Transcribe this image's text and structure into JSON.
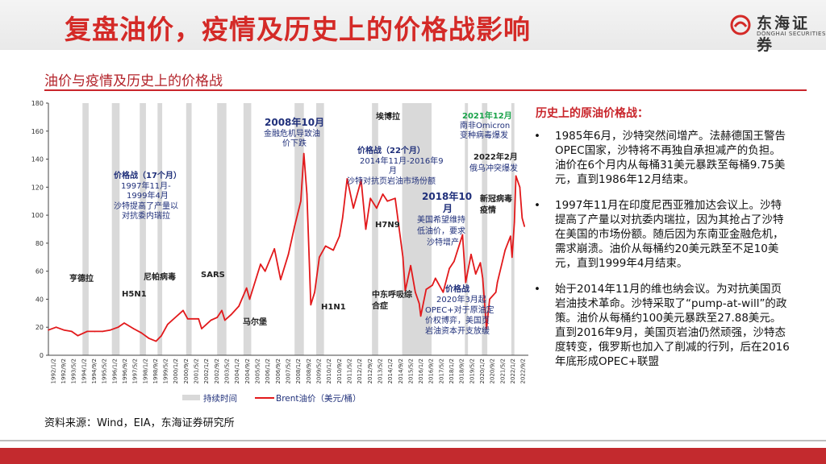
{
  "header": {
    "title": "复盘油价，疫情及历史上的价格战影响",
    "logo_cn": "东海证券",
    "logo_en": "DONGHAI SECURITIES",
    "accent": "#d42a27"
  },
  "subtitle": "油价与疫情及历史上的价格战",
  "chart_data": {
    "type": "line",
    "ylim": [
      0,
      180
    ],
    "yticks": [
      0,
      20,
      40,
      60,
      80,
      100,
      120,
      140,
      160,
      180
    ],
    "xticks": [
      "1992/1/2",
      "1992/9/2",
      "1993/5/2",
      "1994/1/2",
      "1994/9/2",
      "1995/5/2",
      "1996/1/2",
      "1996/9/2",
      "1997/5/2",
      "1998/1/2",
      "1998/9/2",
      "1999/5/2",
      "2000/1/2",
      "2000/9/2",
      "2001/5/2",
      "2002/1/2",
      "2002/9/2",
      "2003/5/2",
      "2004/1/2",
      "2004/9/2",
      "2005/5/2",
      "2006/1/2",
      "2006/9/2",
      "2007/5/2",
      "2008/1/2",
      "2008/9/2",
      "2009/5/2",
      "2010/1/2",
      "2010/9/2",
      "2011/5/2",
      "2012/1/2",
      "2012/9/2",
      "2013/5/2",
      "2014/1/2",
      "2014/9/2",
      "2015/5/2",
      "2016/1/2",
      "2016/9/2",
      "2017/5/2",
      "2018/1/2",
      "2018/9/2",
      "2019/5/2",
      "2020/1/2",
      "2020/9/2",
      "2021/5/2",
      "2022/1/2",
      "2022/9/2"
    ],
    "xlim": [
      1992.0,
      2023.0
    ],
    "series": [
      {
        "name": "Brent油价（美元/桶）",
        "color": "#e2191b",
        "points": [
          [
            1992.0,
            18
          ],
          [
            1992.5,
            20
          ],
          [
            1993.0,
            18
          ],
          [
            1993.5,
            17
          ],
          [
            1993.9,
            14
          ],
          [
            1994.5,
            17
          ],
          [
            1995.0,
            17
          ],
          [
            1995.5,
            17
          ],
          [
            1996.0,
            18
          ],
          [
            1996.5,
            20
          ],
          [
            1996.9,
            23
          ],
          [
            1997.5,
            19
          ],
          [
            1998.0,
            16
          ],
          [
            1998.5,
            12
          ],
          [
            1998.95,
            10
          ],
          [
            1999.3,
            14
          ],
          [
            1999.7,
            22
          ],
          [
            2000.0,
            25
          ],
          [
            2000.7,
            32
          ],
          [
            2001.0,
            26
          ],
          [
            2001.7,
            26
          ],
          [
            2001.9,
            19
          ],
          [
            2002.5,
            25
          ],
          [
            2002.9,
            27
          ],
          [
            2003.2,
            32
          ],
          [
            2003.4,
            25
          ],
          [
            2003.8,
            29
          ],
          [
            2004.3,
            35
          ],
          [
            2004.8,
            48
          ],
          [
            2005.0,
            40
          ],
          [
            2005.7,
            65
          ],
          [
            2006.0,
            60
          ],
          [
            2006.6,
            76
          ],
          [
            2007.0,
            54
          ],
          [
            2007.5,
            72
          ],
          [
            2007.9,
            92
          ],
          [
            2008.3,
            110
          ],
          [
            2008.5,
            144
          ],
          [
            2008.7,
            115
          ],
          [
            2008.95,
            36
          ],
          [
            2009.2,
            45
          ],
          [
            2009.5,
            70
          ],
          [
            2009.9,
            78
          ],
          [
            2010.4,
            75
          ],
          [
            2010.8,
            85
          ],
          [
            2011.0,
            98
          ],
          [
            2011.3,
            126
          ],
          [
            2011.7,
            105
          ],
          [
            2012.2,
            125
          ],
          [
            2012.5,
            90
          ],
          [
            2012.8,
            112
          ],
          [
            2013.2,
            105
          ],
          [
            2013.6,
            115
          ],
          [
            2013.9,
            110
          ],
          [
            2014.4,
            112
          ],
          [
            2014.9,
            70
          ],
          [
            2015.05,
            46
          ],
          [
            2015.4,
            64
          ],
          [
            2015.7,
            45
          ],
          [
            2015.95,
            37
          ],
          [
            2016.05,
            28
          ],
          [
            2016.4,
            47
          ],
          [
            2016.8,
            50
          ],
          [
            2017.0,
            55
          ],
          [
            2017.5,
            45
          ],
          [
            2017.9,
            62
          ],
          [
            2018.2,
            67
          ],
          [
            2018.75,
            86
          ],
          [
            2018.95,
            52
          ],
          [
            2019.3,
            72
          ],
          [
            2019.6,
            58
          ],
          [
            2019.9,
            66
          ],
          [
            2020.05,
            55
          ],
          [
            2020.3,
            19
          ],
          [
            2020.5,
            40
          ],
          [
            2020.9,
            45
          ],
          [
            2021.0,
            52
          ],
          [
            2021.5,
            75
          ],
          [
            2021.85,
            85
          ],
          [
            2021.95,
            70
          ],
          [
            2022.1,
            95
          ],
          [
            2022.2,
            128
          ],
          [
            2022.45,
            120
          ],
          [
            2022.6,
            98
          ],
          [
            2022.75,
            92
          ]
        ]
      }
    ],
    "shading": {
      "name": "持续时间",
      "color": "#d9d9d9",
      "periods": [
        [
          1994.2,
          1994.6
        ],
        [
          1996.1,
          1996.6
        ],
        [
          1997.9,
          1998.3
        ],
        [
          1999.05,
          1999.35
        ],
        [
          2000.9,
          2001.25
        ],
        [
          2002.9,
          2003.5
        ],
        [
          2004.6,
          2005.1
        ],
        [
          2007.9,
          2008.5
        ],
        [
          2009.3,
          2009.8
        ],
        [
          2012.9,
          2013.3
        ],
        [
          2014.85,
          2016.75
        ],
        [
          2018.9,
          2019.1
        ],
        [
          2020.0,
          2020.35
        ],
        [
          2021.9,
          2022.1
        ]
      ]
    },
    "legend": [
      "持续时间",
      "Brent油价（美元/桶）"
    ],
    "legend_position": "bottom",
    "grid": false,
    "annotations": {
      "a2008_title": "2008年10月",
      "a2008_body_1": "金融危机导致油",
      "a2008_body_2": "价下跌",
      "a2021_title": "2021年12月",
      "a2021_body_1": "南非Omicron",
      "a2021_body_2": "变种病毒爆发",
      "ebola": "埃博拉",
      "war14_title": "价格战（22个月）",
      "war14_body_1": "2014年11月-2016年9",
      "war14_body_2": "月",
      "war14_body_3": "沙特对抗页岩油市场份额",
      "war97_title": "价格战（17个月）",
      "war97_body_1": "1997年11月-",
      "war97_body_2": "1999年4月",
      "war97_body_3": "沙特提高了产量以",
      "war97_body_4": "对抗委内瑞拉",
      "a2022_title": "2022年2月",
      "a2022_body": "俄乌冲突爆发",
      "a2018_title_1": "2018年10",
      "a2018_title_2": "月",
      "a2018_body_1": "美国希望维持",
      "a2018_body_2": "低油价，要求",
      "a2018_body_3": "沙特增产",
      "covid_1": "新冠病毒",
      "covid_2": "疫情",
      "h7n9": "H7N9",
      "dengue": "亨德拉",
      "h5n1": "H5N1",
      "nipah": "尼帕病毒",
      "sars": "SARS",
      "marburg": "马尔堡",
      "h1n1": "H1N1",
      "mers_1": "中东呼吸综",
      "mers_2": "合症",
      "war20_title": "价格战",
      "war20_body_1": "2020年3月起",
      "war20_body_2": "OPEC+对于原油定",
      "war20_body_3": "价权博弈，美国页",
      "war20_body_4": "岩油资本开支放缓"
    }
  },
  "right_panel": {
    "title": "历史上的原油价格战：",
    "bullet": "•",
    "items": [
      "1985年6月，沙特突然间增产。法赫德国王警告OPEC国家，沙特将不再独自承担减产的负担。油价在6个月内从每桶31美元暴跌至每桶9.75美元，直到1986年12月结束。",
      "1997年11月在印度尼西亚雅加达会议上。沙特提高了产量以对抗委内瑞拉，因为其抢占了沙特在美国的市场份额。随后因为东南亚金融危机，需求崩溃。油价从每桶约20美元跌至不足10美元，直到1999年4月结束。",
      "始于2014年11月的维也纳会议。为对抗美国页岩油技术革命。沙特采取了“pump-at-will”的政策。油价从每桶约100美元暴跌至27.88美元。直到2016年9月，美国页岩油仍然顽强，沙特态度转变，俄罗斯也加入了削减的行列，后在2016年底形成OPEC+联盟"
    ]
  },
  "source": "资料来源：Wind，EIA，东海证券研究所"
}
